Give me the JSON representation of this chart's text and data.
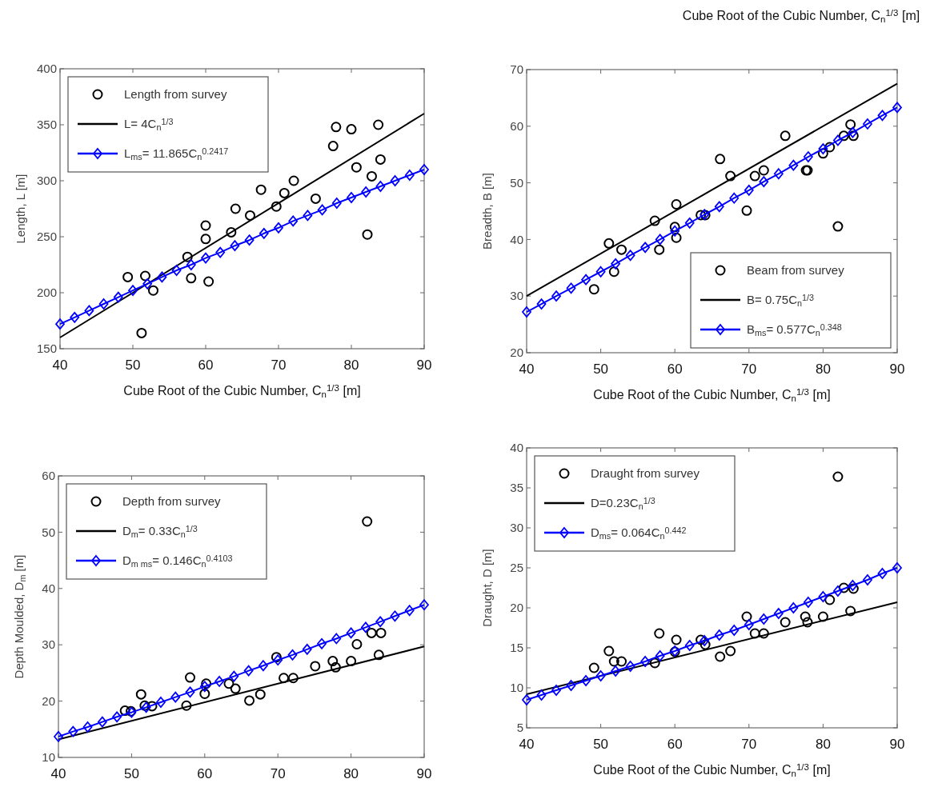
{
  "chart_data": [
    {
      "type": "scatter",
      "xlabel": "Cube Root of the Cubic Number, C$_{n}$$^{1/3}$ [m]",
      "ylabel": "Length, L [m]",
      "xlim": [
        40,
        90
      ],
      "xticks": [
        40,
        50,
        60,
        70,
        80,
        90
      ],
      "ylim": [
        150,
        400
      ],
      "yticks": [
        150,
        200,
        250,
        300,
        350,
        400
      ],
      "legend": "top left",
      "series": [
        {
          "name": "Length from survey",
          "marker": "circle",
          "color": "#000000",
          "x": [
            49.3,
            51.7,
            52.8,
            51.2,
            57.5,
            58.0,
            60.0,
            60.0,
            60.4,
            63.5,
            64.1,
            66.1,
            67.6,
            69.7,
            70.8,
            72.1,
            75.1,
            77.5,
            77.9,
            80.0,
            80.7,
            82.2,
            82.8,
            83.7,
            84.0
          ],
          "values": [
            214,
            215,
            202,
            164,
            232,
            213,
            260,
            248,
            210,
            254,
            275,
            269,
            292,
            277,
            289,
            300,
            284,
            331,
            348,
            346,
            312,
            252,
            304,
            350,
            319
          ]
        },
        {
          "name": "L= 4C$_{n}$$^{1/3}$",
          "type": "line",
          "marker": "none",
          "color": "#000000",
          "x": [
            40,
            90
          ],
          "values": [
            160,
            360
          ]
        },
        {
          "name": "L$_{ms}$= 11.865C$_{n}$$^{0.2417}$",
          "type": "line",
          "marker": "diamond",
          "color": "#0000ff",
          "x": [
            40,
            42,
            44,
            46,
            48,
            50,
            52,
            54,
            56,
            58,
            60,
            62,
            64,
            66,
            68,
            70,
            72,
            74,
            76,
            78,
            80,
            82,
            84,
            86,
            88,
            90
          ],
          "values": [
            172,
            178,
            184,
            190,
            196,
            202,
            208,
            214,
            220,
            225,
            231,
            236,
            242,
            247,
            253,
            258,
            264,
            269,
            274,
            280,
            285,
            290,
            295,
            300,
            305,
            310
          ]
        }
      ]
    },
    {
      "type": "scatter",
      "title": "Cube Root of the Cubic Number, C$_{n}$$^{1/3}$ [m]",
      "xlabel": "Cube Root of the Cubic Number, C$_{n}$$^{1/3}$ [m]",
      "ylabel": "Breadth, B [m]",
      "xlim": [
        40,
        90
      ],
      "xticks": [
        40,
        50,
        60,
        70,
        80,
        90
      ],
      "ylim": [
        20,
        70
      ],
      "yticks": [
        20,
        30,
        40,
        50,
        60,
        70
      ],
      "legend": "bottom right",
      "series": [
        {
          "name": "Beam from survey",
          "marker": "circle",
          "color": "#000000",
          "x": [
            49.1,
            51.1,
            51.8,
            52.8,
            57.3,
            57.9,
            60.0,
            60.2,
            60.2,
            63.5,
            64.1,
            66.1,
            67.5,
            69.7,
            70.8,
            72.0,
            74.9,
            77.7,
            77.9,
            80.0,
            80.9,
            82.0,
            82.8,
            83.7,
            84.1
          ],
          "values": [
            31.2,
            39.3,
            34.3,
            38.2,
            43.3,
            38.2,
            42.2,
            46.2,
            40.3,
            44.3,
            44.3,
            54.2,
            51.2,
            45.1,
            51.2,
            52.2,
            58.3,
            52.2,
            52.2,
            55.2,
            56.3,
            42.3,
            58.3,
            60.3,
            58.3
          ]
        },
        {
          "name": "B= 0.75C$_{n}$$^{1/3}$",
          "type": "line",
          "marker": "none",
          "color": "#000000",
          "x": [
            40,
            90
          ],
          "values": [
            30,
            67.5
          ]
        },
        {
          "name": "B$_{ms}$= 0.577C$_{n}$$^{0.348}$",
          "type": "line",
          "marker": "diamond",
          "color": "#0000ff",
          "x": [
            40,
            42,
            44,
            46,
            48,
            50,
            52,
            54,
            56,
            58,
            60,
            62,
            64,
            66,
            68,
            70,
            72,
            74,
            76,
            78,
            80,
            82,
            84,
            86,
            88,
            90
          ],
          "values": [
            27.2,
            28.6,
            30.0,
            31.4,
            32.9,
            34.3,
            35.7,
            37.2,
            38.6,
            40.0,
            41.5,
            42.9,
            44.4,
            45.8,
            47.3,
            48.7,
            50.2,
            51.6,
            53.1,
            54.6,
            56.0,
            57.5,
            58.9,
            60.4,
            61.9,
            63.3
          ]
        }
      ]
    },
    {
      "type": "scatter",
      "ylabel": "Depth Moulded, D$_{m}$ [m]",
      "xlim": [
        40,
        90
      ],
      "xticks": [
        40,
        50,
        60,
        70,
        80,
        90
      ],
      "ylim": [
        10,
        60
      ],
      "yticks": [
        10,
        20,
        30,
        40,
        50,
        60
      ],
      "legend": "top left",
      "series": [
        {
          "name": "Depth from survey",
          "marker": "circle",
          "color": "#000000",
          "x": [
            49.1,
            49.9,
            51.3,
            51.8,
            52.8,
            57.5,
            58.0,
            60.0,
            60.2,
            63.3,
            64.2,
            66.1,
            67.6,
            69.8,
            70.8,
            72.1,
            75.1,
            77.5,
            77.9,
            80.0,
            80.8,
            82.2,
            82.8,
            84.1,
            83.8
          ],
          "values": [
            18.3,
            18.2,
            21.2,
            19.2,
            19.1,
            19.2,
            24.2,
            21.3,
            23.1,
            23.1,
            22.2,
            20.1,
            21.2,
            27.8,
            24.1,
            24.1,
            26.2,
            27.1,
            26.0,
            27.1,
            30.1,
            51.9,
            32.1,
            32.1,
            28.2
          ]
        },
        {
          "name": "D$_{m}$= 0.33C$_{n}$$^{1/3}$",
          "type": "line",
          "marker": "none",
          "color": "#000000",
          "x": [
            40,
            90
          ],
          "values": [
            13.2,
            29.7
          ]
        },
        {
          "name": "D$_{m ms}$= 0.146C$_{n}$$^{0.4103}$",
          "type": "line",
          "marker": "diamond",
          "color": "#0000ff",
          "x": [
            40,
            42,
            44,
            46,
            48,
            50,
            52,
            54,
            56,
            58,
            60,
            62,
            64,
            66,
            68,
            70,
            72,
            74,
            76,
            78,
            80,
            82,
            84,
            86,
            88,
            90
          ],
          "values": [
            13.7,
            14.6,
            15.4,
            16.3,
            17.2,
            18.0,
            18.9,
            19.8,
            20.7,
            21.6,
            22.6,
            23.5,
            24.4,
            25.4,
            26.3,
            27.3,
            28.2,
            29.2,
            30.2,
            31.1,
            32.1,
            33.1,
            34.1,
            35.1,
            36.1,
            37.1
          ]
        }
      ]
    },
    {
      "type": "scatter",
      "xlabel": "Cube Root of the Cubic Number, C$_{n}$$^{1/3}$ [m]",
      "ylabel": "Draught, D  [m]",
      "xlim": [
        40,
        90
      ],
      "xticks": [
        40,
        50,
        60,
        70,
        80,
        90
      ],
      "ylim": [
        5,
        40
      ],
      "yticks": [
        5,
        10,
        15,
        20,
        25,
        30,
        35,
        40
      ],
      "legend": "top left",
      "series": [
        {
          "name": "Draught from survey",
          "marker": "circle",
          "color": "#000000",
          "x": [
            49.1,
            51.1,
            51.8,
            52.8,
            57.3,
            57.9,
            60.0,
            60.2,
            63.5,
            64.1,
            66.1,
            67.5,
            69.7,
            70.8,
            72.0,
            74.9,
            77.6,
            77.9,
            80.0,
            80.9,
            82.0,
            82.8,
            83.7,
            84.1
          ],
          "values": [
            12.5,
            14.6,
            13.3,
            13.3,
            13.1,
            16.8,
            14.5,
            16.0,
            16.0,
            15.4,
            13.9,
            14.6,
            18.9,
            16.8,
            16.8,
            18.2,
            18.9,
            18.2,
            18.9,
            21.0,
            36.4,
            22.5,
            19.6,
            22.4
          ]
        },
        {
          "name": "D=0.23C$_{n}$$^{1/3}$",
          "type": "line",
          "marker": "none",
          "color": "#000000",
          "x": [
            40,
            90
          ],
          "values": [
            9.2,
            20.7
          ]
        },
        {
          "name": "D$_{ms}$= 0.064C$_{n}$$^{0.442}$",
          "type": "line",
          "marker": "diamond",
          "color": "#0000ff",
          "x": [
            40,
            42,
            44,
            46,
            48,
            50,
            52,
            54,
            56,
            58,
            60,
            62,
            64,
            66,
            68,
            70,
            72,
            74,
            76,
            78,
            80,
            82,
            84,
            86,
            88,
            90
          ],
          "values": [
            8.5,
            9.1,
            9.7,
            10.3,
            10.9,
            11.5,
            12.1,
            12.7,
            13.3,
            14.0,
            14.6,
            15.3,
            15.9,
            16.6,
            17.2,
            17.9,
            18.6,
            19.3,
            20.0,
            20.7,
            21.4,
            22.1,
            22.8,
            23.5,
            24.3,
            25.0
          ]
        }
      ]
    }
  ]
}
